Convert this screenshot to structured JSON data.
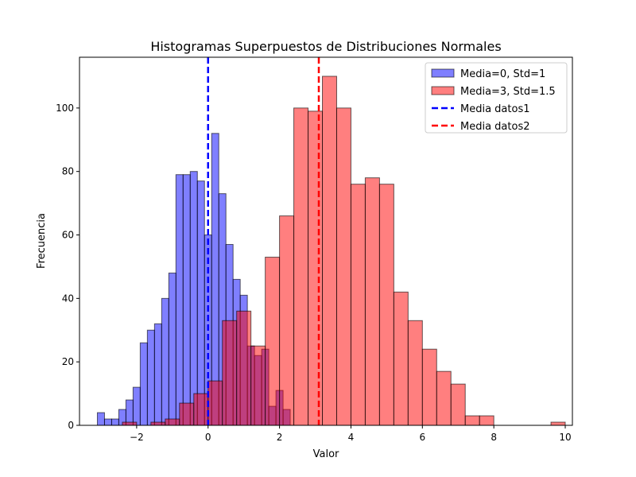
{
  "chart_data": {
    "type": "histogram",
    "title": "Histogramas Superpuestos de Distribuciones Normales",
    "xlabel": "Valor",
    "ylabel": "Frecuencia",
    "xlim": [
      -3.6,
      10.2
    ],
    "ylim": [
      0,
      116
    ],
    "xticks": [
      -2,
      0,
      2,
      4,
      6,
      8,
      10
    ],
    "yticks": [
      0,
      20,
      40,
      60,
      80,
      100
    ],
    "grid": false,
    "legend_position": "top-right",
    "series": [
      {
        "name": "Media=0, Std=1",
        "color": "#0000ff",
        "opacity": 0.5,
        "bin_start": -3.1,
        "bin_width": 0.2,
        "counts": [
          4,
          2,
          2,
          5,
          8,
          12,
          26,
          30,
          32,
          40,
          48,
          79,
          79,
          80,
          77,
          60,
          92,
          73,
          57,
          46,
          41,
          25,
          22,
          24,
          6,
          11,
          5
        ]
      },
      {
        "name": "Media=3, Std=1.5",
        "color": "#ff0000",
        "opacity": 0.5,
        "bin_start": -2.4,
        "bin_width": 0.4,
        "counts": [
          1,
          0,
          1,
          2,
          7,
          10,
          14,
          33,
          36,
          25,
          53,
          66,
          100,
          99,
          110,
          100,
          76,
          78,
          76,
          42,
          33,
          24,
          17,
          13,
          3,
          3,
          0,
          0,
          0,
          0,
          1
        ]
      }
    ],
    "mean_lines": [
      {
        "name": "Media datos1",
        "x": 0.0,
        "color": "#0000ff"
      },
      {
        "name": "Media datos2",
        "x": 3.1,
        "color": "#ff0000"
      }
    ]
  }
}
